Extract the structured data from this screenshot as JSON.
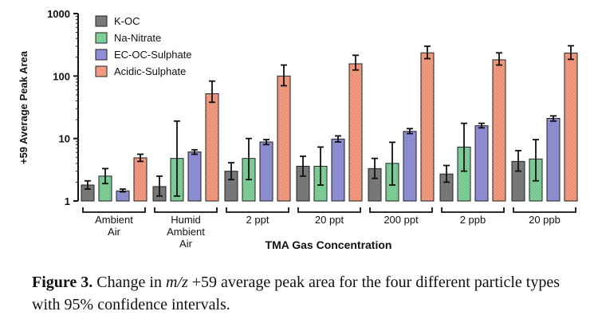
{
  "chart_data": {
    "type": "bar",
    "yscale": "log",
    "ylim": [
      1,
      1000
    ],
    "yticks": [
      "1",
      "10",
      "100",
      "1000"
    ],
    "ylabel": "+59 Average Peak Area",
    "xlabel": "TMA Gas Concentration",
    "legend_position": "top-left",
    "categories": [
      [
        "Ambient",
        "Air"
      ],
      [
        "Humid",
        "Ambient",
        "Air"
      ],
      [
        "2 ppt"
      ],
      [
        "20 ppt"
      ],
      [
        "200 ppt"
      ],
      [
        "2 ppb"
      ],
      [
        "20 ppb"
      ]
    ],
    "series": [
      {
        "name": "K-OC",
        "color": "#7a7a7a",
        "values": [
          1.8,
          1.7,
          3.0,
          3.6,
          3.3,
          2.7,
          4.3
        ],
        "err_low": [
          1.55,
          1.2,
          2.2,
          2.5,
          2.3,
          2.0,
          3.0
        ],
        "err_high": [
          2.1,
          2.5,
          4.1,
          5.2,
          4.8,
          3.7,
          6.4
        ]
      },
      {
        "name": "Na-Nitrate",
        "color": "#7fcf98",
        "values": [
          2.5,
          4.8,
          4.8,
          3.6,
          4.0,
          7.3,
          4.7
        ],
        "err_low": [
          1.9,
          1.2,
          2.2,
          1.8,
          1.8,
          3.0,
          2.1
        ],
        "err_high": [
          3.3,
          19,
          10,
          7.3,
          8.7,
          17.5,
          9.6
        ]
      },
      {
        "name": "EC-OC-Sulphate",
        "color": "#8f8fd6",
        "values": [
          1.45,
          6.1,
          8.8,
          9.8,
          13.0,
          16.0,
          21.0
        ],
        "err_low": [
          1.4,
          5.6,
          8.0,
          8.8,
          12.0,
          14.8,
          19.0
        ],
        "err_high": [
          1.55,
          6.6,
          9.6,
          11.0,
          14.4,
          17.5,
          23.0
        ]
      },
      {
        "name": "Acidic-Sulphate",
        "color": "#f39a80",
        "values": [
          4.9,
          52,
          100,
          157,
          235,
          182,
          233
        ],
        "err_low": [
          4.3,
          38,
          70,
          125,
          190,
          150,
          185
        ],
        "err_high": [
          5.6,
          83,
          150,
          215,
          300,
          235,
          305
        ]
      }
    ]
  },
  "caption": {
    "label": "Figure 3.",
    "text_before": "Change in",
    "mz": "m/z",
    "text_after": "+59 average peak area for the four different particle types with 95% confidence intervals."
  }
}
